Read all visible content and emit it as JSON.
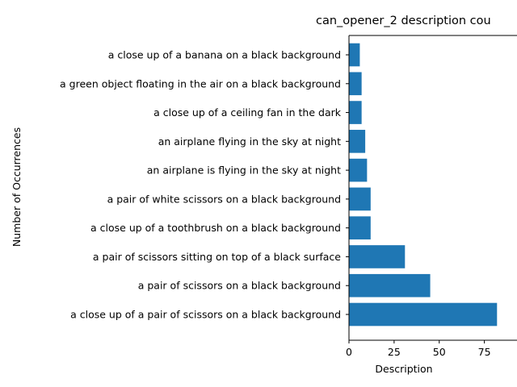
{
  "chart_data": {
    "type": "bar",
    "orientation": "horizontal",
    "title": "can_opener_2 description cou",
    "xlabel": "Description",
    "ylabel": "Number of Occurrences",
    "xlim": [
      0,
      85
    ],
    "xticks": [
      0,
      25,
      50,
      75
    ],
    "grid": false,
    "categories": [
      "a close up of a pair of scissors on a black background",
      "a pair of scissors on a black background",
      "a pair of scissors sitting on top of a black surface",
      "a close up of a toothbrush on a black background",
      "a pair of white scissors on a black background",
      "an airplane is flying in the sky at night",
      "an airplane flying in the sky at night",
      "a close up of a ceiling fan in the dark",
      "a green object floating in the air on a black background",
      "a close up of a banana on a black background"
    ],
    "values": [
      82,
      45,
      31,
      12,
      12,
      10,
      9,
      7,
      7,
      6
    ],
    "bar_color": "#1f77b4"
  }
}
